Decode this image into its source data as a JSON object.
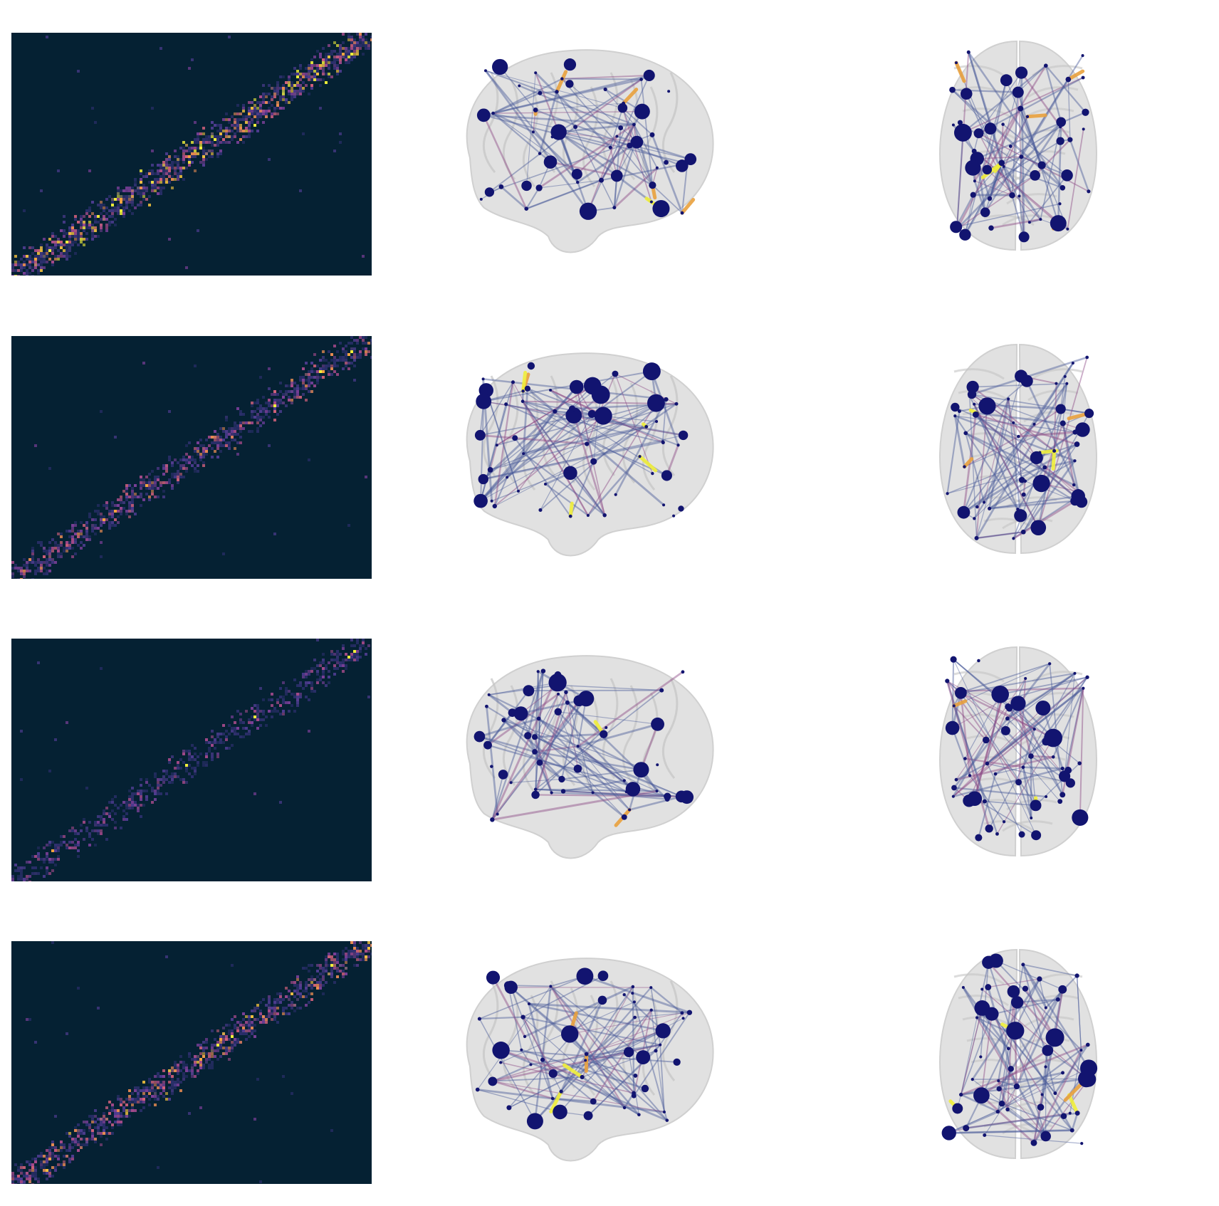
{
  "colors": {
    "matrix_background": "#052133",
    "node": "#121470",
    "edge_weak": "#4a5b9a",
    "edge_mid": "#8d4a86",
    "edge_strong": "#e9a13e",
    "edge_max": "#f0ef3a",
    "brain_fill": "#dcdcdc"
  },
  "rows": [
    {
      "id": "row-1",
      "matrix_density": 1.0,
      "strong_edge_count": 6
    },
    {
      "id": "row-2",
      "matrix_density": 0.7,
      "strong_edge_count": 5
    },
    {
      "id": "row-3",
      "matrix_density": 0.5,
      "strong_edge_count": 2
    },
    {
      "id": "row-4",
      "matrix_density": 0.8,
      "strong_edge_count": 4
    }
  ]
}
